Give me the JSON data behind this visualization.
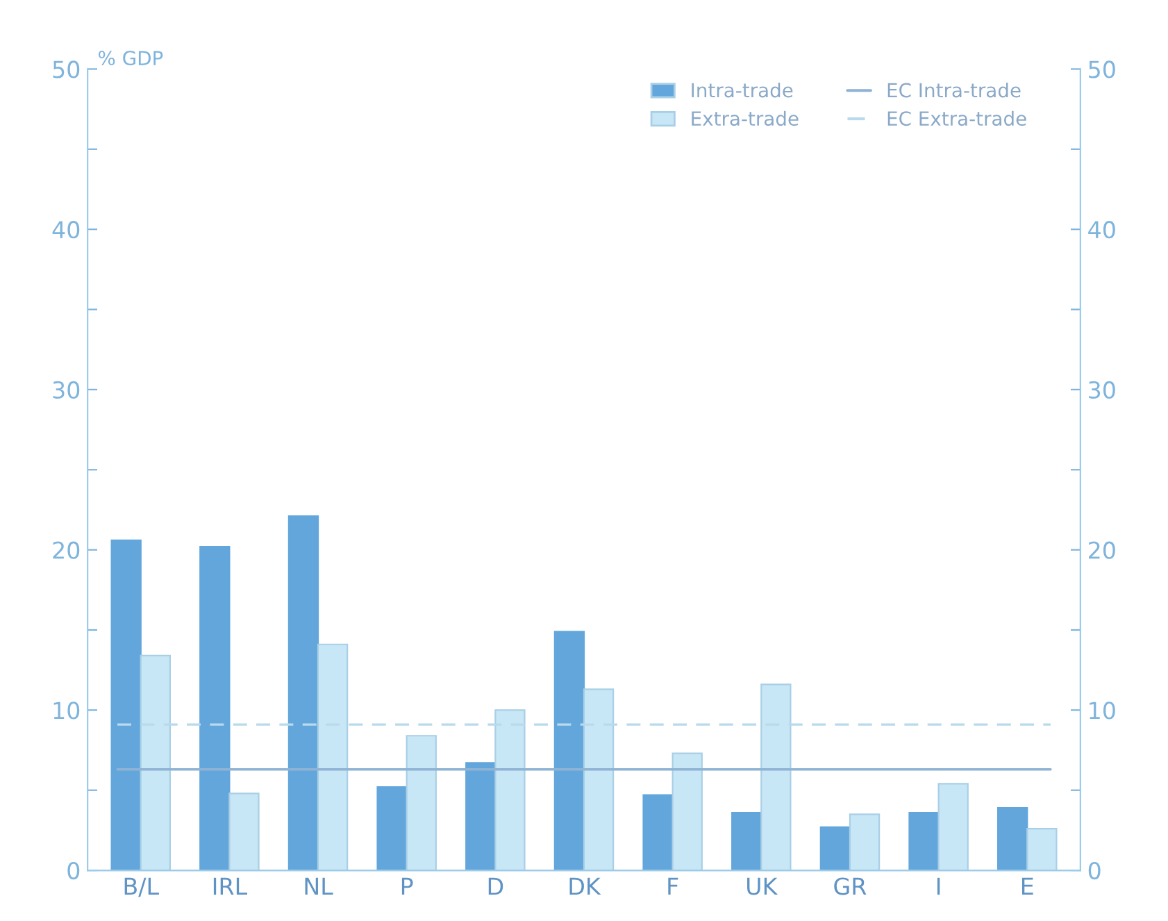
{
  "chart_data": {
    "type": "bar",
    "ylabel": "% GDP",
    "categories": [
      "B/L",
      "IRL",
      "NL",
      "P",
      "D",
      "DK",
      "F",
      "UK",
      "GR",
      "I",
      "E"
    ],
    "series": [
      {
        "name": "Intra-trade",
        "color": "#62a6dc",
        "values": [
          20.6,
          20.2,
          22.1,
          5.2,
          6.7,
          14.9,
          4.7,
          3.6,
          2.7,
          3.6,
          3.9
        ]
      },
      {
        "name": "Extra-trade",
        "color": "#c8e7f6",
        "values": [
          13.4,
          4.8,
          14.1,
          8.4,
          10.0,
          11.3,
          7.3,
          11.6,
          3.5,
          5.4,
          2.6
        ]
      }
    ],
    "ref_lines": [
      {
        "axis": "y",
        "value": 6.3,
        "label": "EC Intra-trade",
        "color": "#8fb3d4",
        "line_style": "solid"
      },
      {
        "axis": "y",
        "value": 9.1,
        "label": "EC Extra-trade",
        "color": "#b9d9ec",
        "line_style": "dashed"
      }
    ],
    "ylim": [
      0,
      50
    ],
    "yticks": [
      0,
      {
        "value": 5,
        "label": null
      },
      10,
      {
        "value": 15,
        "label": null
      },
      20,
      {
        "value": 25,
        "label": null
      },
      30,
      {
        "value": 35,
        "label": null
      },
      40,
      {
        "value": 45,
        "label": null
      },
      50
    ],
    "y2lim": [
      0,
      50
    ],
    "y2ticks": [
      0,
      {
        "value": 5,
        "label": null
      },
      10,
      {
        "value": 15,
        "label": null
      },
      20,
      {
        "value": 25,
        "label": null
      },
      30,
      {
        "value": 35,
        "label": null
      },
      40,
      {
        "value": 45,
        "label": null
      },
      50
    ],
    "legend": "top right",
    "grid": false
  }
}
